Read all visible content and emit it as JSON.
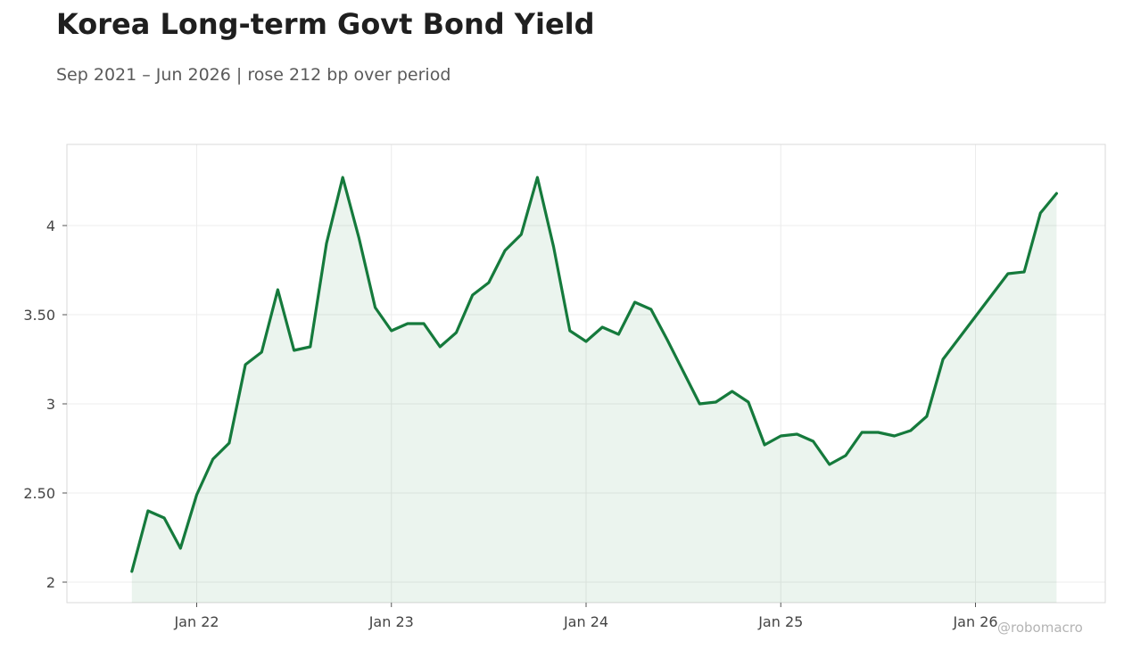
{
  "chart_data": {
    "type": "area",
    "title": "Korea Long-term Govt Bond Yield",
    "subtitle": "Sep 2021 – Jun 2026 | rose 212 bp over period",
    "xlabel": "",
    "ylabel": "",
    "x": [
      "2021-09",
      "2021-10",
      "2021-11",
      "2021-12",
      "2022-01",
      "2022-02",
      "2022-03",
      "2022-04",
      "2022-05",
      "2022-06",
      "2022-07",
      "2022-08",
      "2022-09",
      "2022-10",
      "2022-11",
      "2022-12",
      "2023-01",
      "2023-02",
      "2023-03",
      "2023-04",
      "2023-05",
      "2023-06",
      "2023-07",
      "2023-08",
      "2023-09",
      "2023-10",
      "2023-11",
      "2023-12",
      "2024-01",
      "2024-02",
      "2024-03",
      "2024-04",
      "2024-05",
      "2024-06",
      "2024-07",
      "2024-08",
      "2024-09",
      "2024-10",
      "2024-11",
      "2024-12",
      "2025-01",
      "2025-02",
      "2025-03",
      "2025-04",
      "2025-05",
      "2025-06",
      "2025-07",
      "2025-08",
      "2025-09",
      "2025-10",
      "2025-11",
      "2025-12",
      "2026-01",
      "2026-02",
      "2026-03",
      "2026-04",
      "2026-05",
      "2026-06"
    ],
    "series": [
      {
        "values": [
          2.06,
          2.4,
          2.36,
          2.19,
          2.49,
          2.69,
          2.78,
          3.22,
          3.29,
          3.64,
          3.3,
          3.32,
          3.9,
          4.27,
          3.93,
          3.54,
          3.41,
          3.45,
          3.45,
          3.32,
          3.4,
          3.61,
          3.68,
          3.86,
          3.95,
          4.27,
          3.88,
          3.41,
          3.35,
          3.43,
          3.39,
          3.57,
          3.53,
          3.36,
          3.18,
          3.0,
          3.01,
          3.07,
          3.01,
          2.77,
          2.82,
          2.83,
          2.79,
          2.66,
          2.71,
          2.84,
          2.84,
          2.82,
          2.85,
          2.93,
          3.25,
          3.37,
          3.49,
          3.61,
          3.73,
          3.74,
          4.07,
          4.18
        ]
      }
    ],
    "xticks": [
      {
        "value": "2022-01",
        "label": "Jan 22"
      },
      {
        "value": "2023-01",
        "label": "Jan 23"
      },
      {
        "value": "2024-01",
        "label": "Jan 24"
      },
      {
        "value": "2025-01",
        "label": "Jan 25"
      },
      {
        "value": "2026-01",
        "label": "Jan 26"
      }
    ],
    "yticks": [
      {
        "value": 2,
        "label": "2"
      },
      {
        "value": 2.5,
        "label": "2.50"
      },
      {
        "value": 3,
        "label": "3"
      },
      {
        "value": 3.5,
        "label": "3.50"
      },
      {
        "value": 4,
        "label": "4"
      }
    ],
    "xlim": [
      "2021-05",
      "2026-09"
    ],
    "ylim": [
      1.885,
      4.455
    ],
    "grid": true,
    "legend": "none",
    "colors": {
      "line": "#157a3c",
      "fill": "#157a3c",
      "fill_opacity": 0.085,
      "grid": "#ececec",
      "frame": "#d9d9d9"
    }
  },
  "watermark": "@robomacro"
}
